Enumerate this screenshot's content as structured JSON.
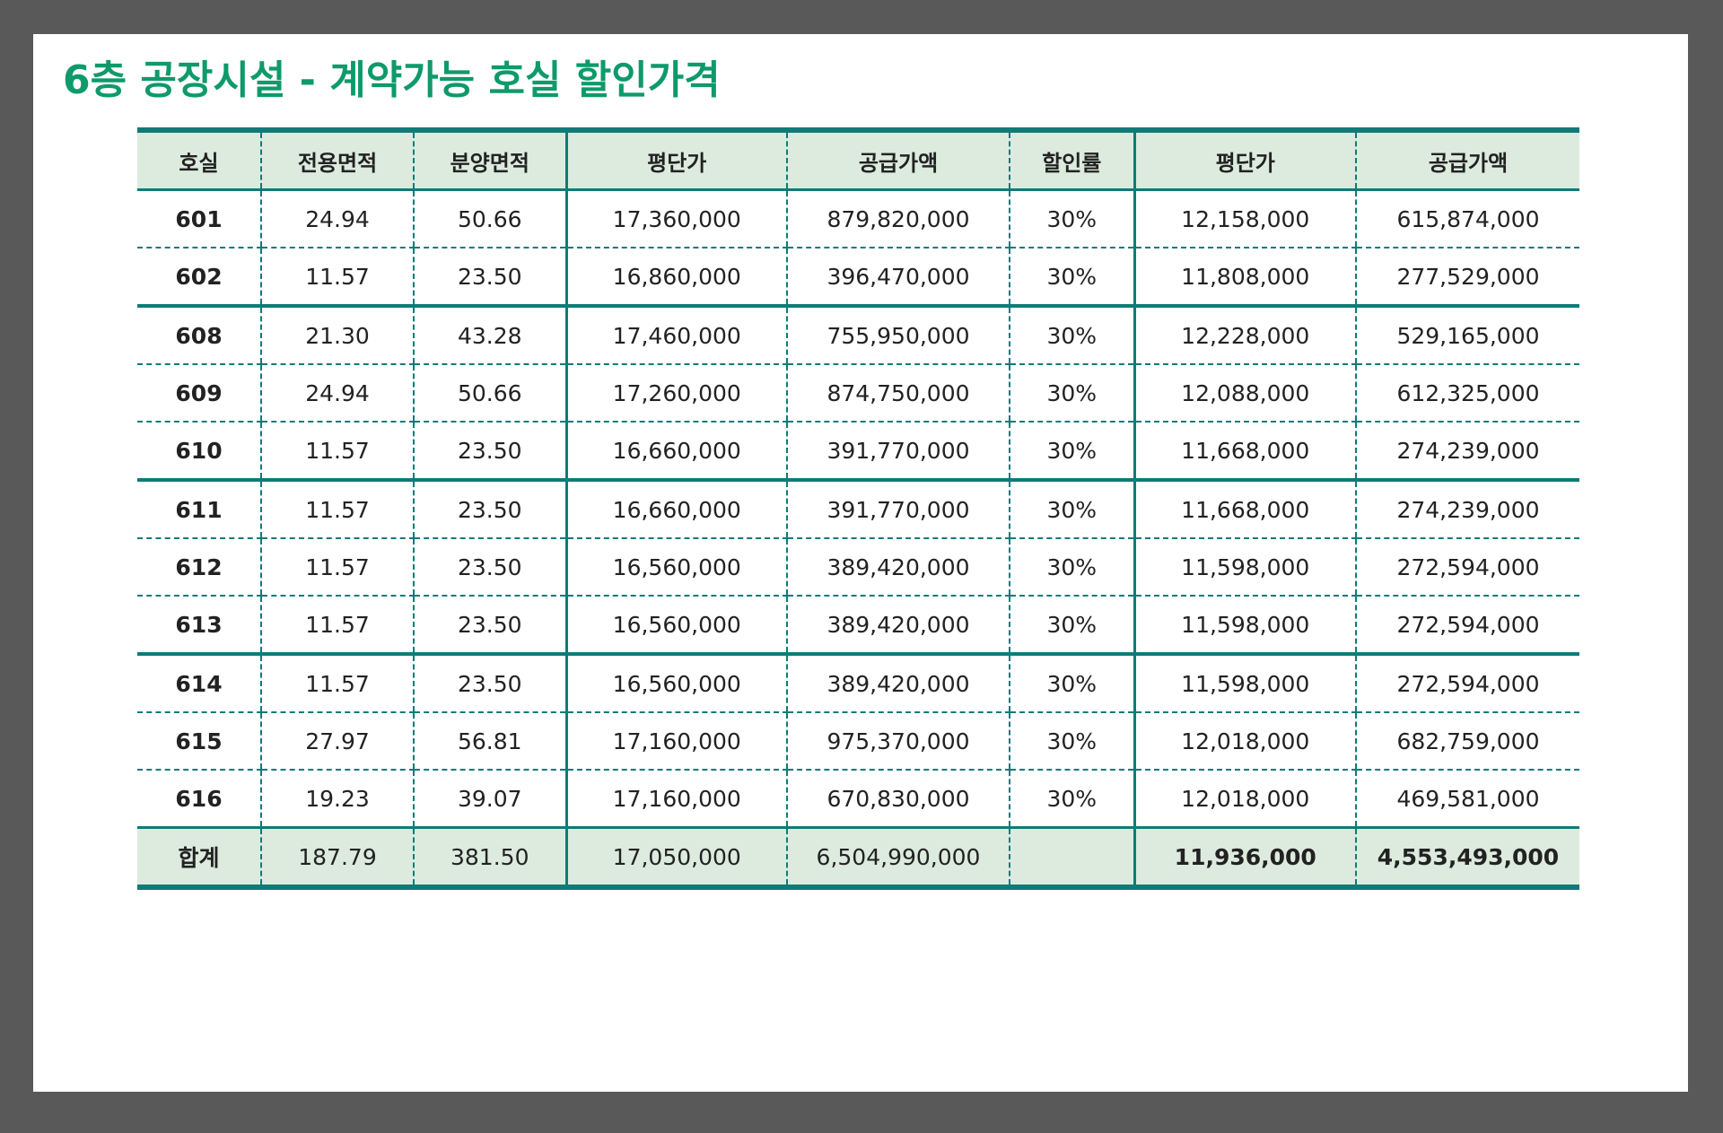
{
  "title": "6층 공장시설 - 계약가능 호실 할인가격",
  "table": {
    "headers": [
      "호실",
      "전용면적",
      "분양면적",
      "평단가",
      "공급가액",
      "할인률",
      "평단가",
      "공급가액"
    ],
    "rows": [
      [
        "601",
        "24.94",
        "50.66",
        "17,360,000",
        "879,820,000",
        "30%",
        "12,158,000",
        "615,874,000"
      ],
      [
        "602",
        "11.57",
        "23.50",
        "16,860,000",
        "396,470,000",
        "30%",
        "11,808,000",
        "277,529,000"
      ],
      [
        "608",
        "21.30",
        "43.28",
        "17,460,000",
        "755,950,000",
        "30%",
        "12,228,000",
        "529,165,000"
      ],
      [
        "609",
        "24.94",
        "50.66",
        "17,260,000",
        "874,750,000",
        "30%",
        "12,088,000",
        "612,325,000"
      ],
      [
        "610",
        "11.57",
        "23.50",
        "16,660,000",
        "391,770,000",
        "30%",
        "11,668,000",
        "274,239,000"
      ],
      [
        "611",
        "11.57",
        "23.50",
        "16,660,000",
        "391,770,000",
        "30%",
        "11,668,000",
        "274,239,000"
      ],
      [
        "612",
        "11.57",
        "23.50",
        "16,560,000",
        "389,420,000",
        "30%",
        "11,598,000",
        "272,594,000"
      ],
      [
        "613",
        "11.57",
        "23.50",
        "16,560,000",
        "389,420,000",
        "30%",
        "11,598,000",
        "272,594,000"
      ],
      [
        "614",
        "11.57",
        "23.50",
        "16,560,000",
        "389,420,000",
        "30%",
        "11,598,000",
        "272,594,000"
      ],
      [
        "615",
        "27.97",
        "56.81",
        "17,160,000",
        "975,370,000",
        "30%",
        "12,018,000",
        "682,759,000"
      ],
      [
        "616",
        "19.23",
        "39.07",
        "17,160,000",
        "670,830,000",
        "30%",
        "12,018,000",
        "469,581,000"
      ]
    ],
    "total": [
      "합계",
      "187.79",
      "381.50",
      "17,050,000",
      "6,504,990,000",
      "",
      "11,936,000",
      "4,553,493,000"
    ]
  },
  "colors": {
    "accent": "#0f7b78",
    "title": "#0e9a6b",
    "header_bg": "#dcebde",
    "frame": "#595959"
  }
}
